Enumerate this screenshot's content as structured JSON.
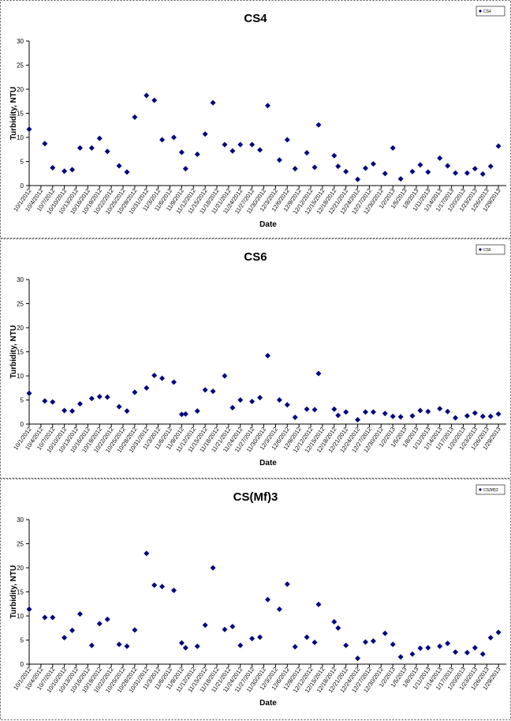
{
  "chart_data": [
    {
      "type": "scatter",
      "title": "CS4",
      "x_label": "Date",
      "y_label": "Turbidity, NTU",
      "x": [
        "10/1/2012",
        "10/5/2012",
        "10/7/2012",
        "10/10/2012",
        "10/12/2012",
        "10/14/2012",
        "10/17/2012",
        "10/19/2012",
        "10/21/2012",
        "10/24/2012",
        "10/26/2012",
        "10/28/2012",
        "10/31/2012",
        "11/2/2012",
        "11/4/2012",
        "11/7/2012",
        "11/9/2012",
        "11/10/2012",
        "11/13/2012",
        "11/15/2012",
        "11/17/2012",
        "11/20/2012",
        "11/22/2012",
        "11/24/2012",
        "11/27/2012",
        "11/29/2012",
        "12/1/2012",
        "12/4/2012",
        "12/6/2012",
        "12/8/2012",
        "12/11/2012",
        "12/13/2012",
        "12/14/2012",
        "12/18/2012",
        "12/19/2012",
        "12/21/2012",
        "12/24/2012",
        "12/26/2012",
        "12/28/2012",
        "12/31/2012",
        "1/2/2013",
        "1/4/2013",
        "1/7/2013",
        "1/9/2013",
        "1/11/2013",
        "1/14/2013",
        "1/16/2013",
        "1/18/2013",
        "1/21/2013",
        "1/23/2013",
        "1/25/2013",
        "1/27/2013",
        "1/29/2013"
      ],
      "series": [
        {
          "name": "CS4",
          "color": "#000080",
          "values": [
            11.7,
            8.7,
            3.7,
            3.0,
            3.3,
            7.8,
            7.8,
            9.8,
            7.1,
            4.1,
            2.8,
            14.2,
            18.7,
            17.7,
            9.5,
            10.0,
            6.9,
            3.5,
            6.5,
            10.7,
            17.2,
            8.5,
            7.2,
            8.5,
            8.5,
            7.4,
            16.6,
            5.3,
            9.5,
            3.5,
            6.8,
            3.8,
            12.6,
            6.2,
            4.0,
            2.9,
            1.3,
            3.6,
            4.5,
            2.5,
            7.8,
            1.4,
            2.9,
            4.3,
            2.8,
            5.7,
            4.1,
            2.6,
            2.6,
            3.5,
            2.4,
            4.0,
            8.2
          ]
        }
      ],
      "xlim": [
        "10/1/2012",
        "1/31/2013"
      ],
      "xticks": [
        "10/1/2012",
        "10/4/2012",
        "10/7/2012",
        "10/10/2012",
        "10/13/2012",
        "10/16/2012",
        "10/19/2012",
        "10/22/2012",
        "10/25/2012",
        "10/28/2012",
        "10/31/2012",
        "11/3/2012",
        "11/6/2012",
        "11/9/2012",
        "11/12/2012",
        "11/15/2012",
        "11/18/2012",
        "11/21/2012",
        "11/24/2012",
        "11/27/2012",
        "11/30/2012",
        "12/3/2012",
        "12/6/2012",
        "12/9/2012",
        "12/12/2012",
        "12/15/2012",
        "12/18/2012",
        "12/21/2012",
        "12/24/2012",
        "12/27/2012",
        "12/30/2012",
        "1/2/2013",
        "1/5/2013",
        "1/8/2013",
        "1/11/2013",
        "1/14/2013",
        "1/17/2013",
        "1/20/2013",
        "1/23/2013",
        "1/26/2013",
        "1/29/2013"
      ],
      "ylim": [
        0,
        30
      ],
      "yticks": [
        0,
        5,
        10,
        15,
        20,
        25,
        30
      ],
      "legend": "upper right"
    },
    {
      "type": "scatter",
      "title": "CS6",
      "x_label": "Date",
      "y_label": "Turbidity, NTU",
      "x": [
        "10/1/2012",
        "10/5/2012",
        "10/7/2012",
        "10/10/2012",
        "10/12/2012",
        "10/14/2012",
        "10/17/2012",
        "10/19/2012",
        "10/21/2012",
        "10/24/2012",
        "10/26/2012",
        "10/28/2012",
        "10/31/2012",
        "11/2/2012",
        "11/4/2012",
        "11/7/2012",
        "11/9/2012",
        "11/10/2012",
        "11/13/2012",
        "11/15/2012",
        "11/17/2012",
        "11/20/2012",
        "11/22/2012",
        "11/24/2012",
        "11/27/2012",
        "11/29/2012",
        "12/1/2012",
        "12/4/2012",
        "12/6/2012",
        "12/8/2012",
        "12/11/2012",
        "12/13/2012",
        "12/14/2012",
        "12/18/2012",
        "12/19/2012",
        "12/21/2012",
        "12/24/2012",
        "12/26/2012",
        "12/28/2012",
        "12/31/2012",
        "1/2/2013",
        "1/4/2013",
        "1/7/2013",
        "1/9/2013",
        "1/11/2013",
        "1/14/2013",
        "1/16/2013",
        "1/18/2013",
        "1/21/2013",
        "1/23/2013",
        "1/25/2013",
        "1/27/2013",
        "1/29/2013"
      ],
      "series": [
        {
          "name": "CS6",
          "color": "#000080",
          "values": [
            6.4,
            4.8,
            4.6,
            2.8,
            2.7,
            4.2,
            5.3,
            5.7,
            5.6,
            3.6,
            2.7,
            6.6,
            7.5,
            10.1,
            9.5,
            8.7,
            2.0,
            2.1,
            2.7,
            7.1,
            6.8,
            10.0,
            3.4,
            5.0,
            4.7,
            5.5,
            14.2,
            5.0,
            4.0,
            1.4,
            3.1,
            3.0,
            10.5,
            3.1,
            1.8,
            2.5,
            0.9,
            2.5,
            2.5,
            2.2,
            1.6,
            1.5,
            1.7,
            2.8,
            2.6,
            3.2,
            2.6,
            1.3,
            1.7,
            2.3,
            1.6,
            1.6,
            2.1
          ]
        }
      ],
      "xlim": [
        "10/1/2012",
        "1/31/2013"
      ],
      "xticks": [
        "10/1/2012",
        "10/4/2012",
        "10/7/2012",
        "10/10/2012",
        "10/13/2012",
        "10/16/2012",
        "10/19/2012",
        "10/22/2012",
        "10/25/2012",
        "10/28/2012",
        "10/31/2012",
        "11/3/2012",
        "11/6/2012",
        "11/9/2012",
        "11/12/2012",
        "11/15/2012",
        "11/18/2012",
        "11/21/2012",
        "11/24/2012",
        "11/27/2012",
        "11/30/2012",
        "12/3/2012",
        "12/6/2012",
        "12/9/2012",
        "12/12/2012",
        "12/15/2012",
        "12/18/2012",
        "12/21/2012",
        "12/24/2012",
        "12/27/2012",
        "12/30/2012",
        "1/2/2013",
        "1/5/2013",
        "1/8/2013",
        "1/11/2013",
        "1/14/2013",
        "1/17/2013",
        "1/20/2013",
        "1/23/2013",
        "1/26/2013",
        "1/29/2013"
      ],
      "ylim": [
        0,
        30
      ],
      "yticks": [
        0,
        5,
        10,
        15,
        20,
        25,
        30
      ],
      "legend": "upper right"
    },
    {
      "type": "scatter",
      "title": "CS(Mf)3",
      "x_label": "Date",
      "y_label": "Turbidity, NTU",
      "x": [
        "10/1/2012",
        "10/5/2012",
        "10/7/2012",
        "10/10/2012",
        "10/12/2012",
        "10/14/2012",
        "10/17/2012",
        "10/19/2012",
        "10/21/2012",
        "10/24/2012",
        "10/26/2012",
        "10/28/2012",
        "10/31/2012",
        "11/2/2012",
        "11/4/2012",
        "11/7/2012",
        "11/9/2012",
        "11/10/2012",
        "11/13/2012",
        "11/15/2012",
        "11/17/2012",
        "11/20/2012",
        "11/22/2012",
        "11/24/2012",
        "11/27/2012",
        "11/29/2012",
        "12/1/2012",
        "12/4/2012",
        "12/6/2012",
        "12/8/2012",
        "12/11/2012",
        "12/13/2012",
        "12/14/2012",
        "12/18/2012",
        "12/19/2012",
        "12/21/2012",
        "12/24/2012",
        "12/26/2012",
        "12/28/2012",
        "12/31/2012",
        "1/2/2013",
        "1/4/2013",
        "1/7/2013",
        "1/9/2013",
        "1/11/2013",
        "1/14/2013",
        "1/16/2013",
        "1/18/2013",
        "1/21/2013",
        "1/23/2013",
        "1/25/2013",
        "1/27/2013",
        "1/29/2013"
      ],
      "series": [
        {
          "name": "CS(Mf)3",
          "color": "#000080",
          "values": [
            11.4,
            9.7,
            9.7,
            5.5,
            7.0,
            10.4,
            3.9,
            8.4,
            9.3,
            4.1,
            3.7,
            7.1,
            23.0,
            16.4,
            16.1,
            15.3,
            4.4,
            3.4,
            3.7,
            8.1,
            20.0,
            7.2,
            7.8,
            3.9,
            5.3,
            5.6,
            13.4,
            11.4,
            16.6,
            3.6,
            5.6,
            4.5,
            12.4,
            8.8,
            7.5,
            3.9,
            1.2,
            4.6,
            4.8,
            6.4,
            4.1,
            1.5,
            2.1,
            3.3,
            3.4,
            3.7,
            4.3,
            2.5,
            2.4,
            3.4,
            2.1,
            5.5,
            6.6
          ]
        }
      ],
      "xlim": [
        "10/1/2012",
        "1/31/2013"
      ],
      "xticks": [
        "10/1/2012",
        "10/4/2012",
        "10/7/2012",
        "10/10/2012",
        "10/13/2012",
        "10/16/2012",
        "10/19/2012",
        "10/22/2012",
        "10/25/2012",
        "10/28/2012",
        "10/31/2012",
        "11/3/2012",
        "11/6/2012",
        "11/9/2012",
        "11/12/2012",
        "11/15/2012",
        "11/18/2012",
        "11/21/2012",
        "11/24/2012",
        "11/27/2012",
        "11/30/2012",
        "12/3/2012",
        "12/6/2012",
        "12/9/2012",
        "12/12/2012",
        "12/15/2012",
        "12/18/2012",
        "12/21/2012",
        "12/24/2012",
        "12/27/2012",
        "12/30/2012",
        "1/2/2013",
        "1/5/2013",
        "1/8/2013",
        "1/11/2013",
        "1/14/2013",
        "1/17/2013",
        "1/20/2013",
        "1/23/2013",
        "1/26/2013",
        "1/29/2013"
      ],
      "ylim": [
        0,
        30
      ],
      "yticks": [
        0,
        5,
        10,
        15,
        20,
        25,
        30
      ],
      "legend": "upper right"
    }
  ]
}
